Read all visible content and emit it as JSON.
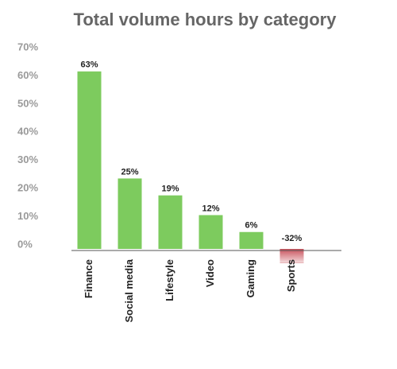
{
  "chart_data": {
    "type": "bar",
    "title": "Total volume hours by category",
    "categories": [
      "Finance",
      "Social media",
      "Lifestyle",
      "Video",
      "Gaming",
      "Sports"
    ],
    "values": [
      63,
      25,
      19,
      12,
      6,
      -32
    ],
    "value_labels": [
      "63%",
      "25%",
      "19%",
      "12%",
      "6%",
      "-32%"
    ],
    "colors": [
      "#7dcb5e",
      "#7dcb5e",
      "#7dcb5e",
      "#7dcb5e",
      "#7dcb5e",
      "#c9515b"
    ],
    "ylim": [
      -5,
      70
    ],
    "yticks": [
      {
        "value": 0,
        "label": "0%"
      },
      {
        "value": 10,
        "label": "10%"
      },
      {
        "value": 20,
        "label": "20%"
      },
      {
        "value": 30,
        "label": "30%"
      },
      {
        "value": 40,
        "label": "40%"
      },
      {
        "value": 50,
        "label": "50%"
      },
      {
        "value": 60,
        "label": "60%"
      },
      {
        "value": 70,
        "label": "70%"
      }
    ],
    "grid": false
  }
}
